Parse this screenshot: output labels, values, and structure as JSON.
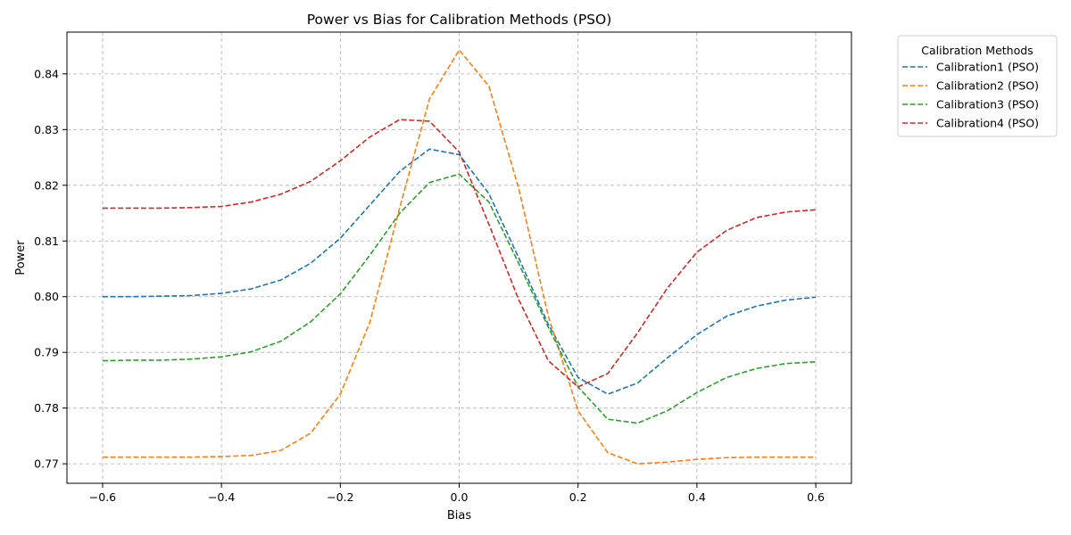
{
  "chart_data": {
    "type": "line",
    "title": "Power vs Bias for Calibration Methods (PSO)",
    "xlabel": "Bias",
    "ylabel": "Power",
    "xlim": [
      -0.66,
      0.66
    ],
    "ylim": [
      0.7665,
      0.8475
    ],
    "xticks": [
      -0.6,
      -0.4,
      -0.2,
      0.0,
      0.2,
      0.4,
      0.6
    ],
    "xtick_labels": [
      "−0.6",
      "−0.4",
      "−0.2",
      "0.0",
      "0.2",
      "0.4",
      "0.6"
    ],
    "yticks": [
      0.77,
      0.78,
      0.79,
      0.8,
      0.81,
      0.82,
      0.83,
      0.84
    ],
    "ytick_labels": [
      "0.77",
      "0.78",
      "0.79",
      "0.80",
      "0.81",
      "0.82",
      "0.83",
      "0.84"
    ],
    "grid": true,
    "line_style": "dashed",
    "legend": {
      "title": "Calibration Methods",
      "placement": "outside-top-right"
    },
    "x": [
      -0.6,
      -0.55,
      -0.5,
      -0.45,
      -0.4,
      -0.35,
      -0.3,
      -0.25,
      -0.2,
      -0.15,
      -0.1,
      -0.05,
      0.0,
      0.05,
      0.1,
      0.15,
      0.2,
      0.25,
      0.3,
      0.35,
      0.4,
      0.45,
      0.5,
      0.55,
      0.6
    ],
    "series": [
      {
        "name": "Calibration1 (PSO)",
        "color": "#1f77b4",
        "values": [
          0.8,
          0.8,
          0.8001,
          0.8002,
          0.8006,
          0.8014,
          0.803,
          0.806,
          0.8105,
          0.8165,
          0.8225,
          0.8265,
          0.8255,
          0.8185,
          0.807,
          0.795,
          0.7855,
          0.7825,
          0.7845,
          0.789,
          0.7932,
          0.7965,
          0.7983,
          0.7994,
          0.7999
        ]
      },
      {
        "name": "Calibration2 (PSO)",
        "color": "#ff7f0e",
        "values": [
          0.7712,
          0.7712,
          0.7712,
          0.7712,
          0.7713,
          0.7715,
          0.7724,
          0.7755,
          0.7825,
          0.7955,
          0.816,
          0.8355,
          0.8443,
          0.8378,
          0.8195,
          0.7965,
          0.7795,
          0.772,
          0.77,
          0.7703,
          0.7708,
          0.7711,
          0.7712,
          0.7712,
          0.7712
        ]
      },
      {
        "name": "Calibration3 (PSO)",
        "color": "#2ca02c",
        "values": [
          0.7885,
          0.7886,
          0.7886,
          0.7888,
          0.7892,
          0.7901,
          0.792,
          0.7955,
          0.8005,
          0.8075,
          0.815,
          0.8205,
          0.822,
          0.817,
          0.806,
          0.7945,
          0.7838,
          0.778,
          0.7773,
          0.7795,
          0.7828,
          0.7855,
          0.7871,
          0.788,
          0.7883
        ]
      },
      {
        "name": "Calibration4 (PSO)",
        "color": "#d62728",
        "values": [
          0.8159,
          0.8159,
          0.8159,
          0.816,
          0.8162,
          0.817,
          0.8184,
          0.8207,
          0.8244,
          0.8287,
          0.8318,
          0.8315,
          0.826,
          0.813,
          0.7995,
          0.7885,
          0.7838,
          0.7862,
          0.7935,
          0.8015,
          0.808,
          0.8119,
          0.8142,
          0.8152,
          0.8156
        ]
      }
    ]
  }
}
